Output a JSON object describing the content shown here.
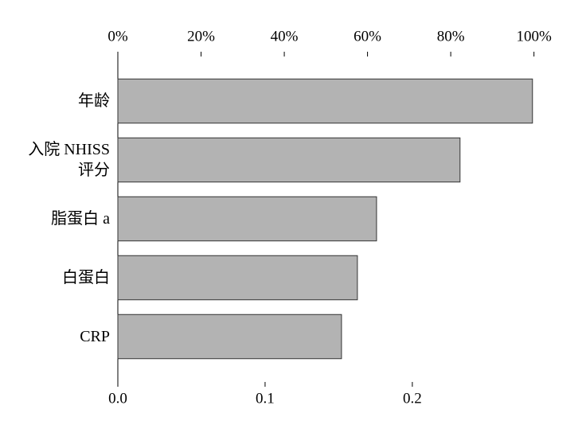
{
  "chart_data": {
    "type": "hbar",
    "categories": [
      "年龄",
      "入院 NHISS\n评分",
      "脂蛋白 a",
      "白蛋白",
      "CRP"
    ],
    "values": [
      0.2816,
      0.2324,
      0.1757,
      0.1627,
      0.1519
    ],
    "color": "#b3b3b3",
    "xlim": [
      0,
      0.312
    ],
    "xticks": [
      {
        "value": 0,
        "label": "0.0"
      },
      0.1,
      0.2
    ],
    "x2lim": [
      0,
      110.4
    ],
    "x2ticks": [
      {
        "value": 0,
        "label": "0%"
      },
      {
        "value": 20,
        "label": "20%"
      },
      {
        "value": 40,
        "label": "40%"
      },
      {
        "value": 60,
        "label": "60%"
      },
      {
        "value": 80,
        "label": "80%"
      },
      {
        "value": 100,
        "label": "100%"
      }
    ]
  }
}
